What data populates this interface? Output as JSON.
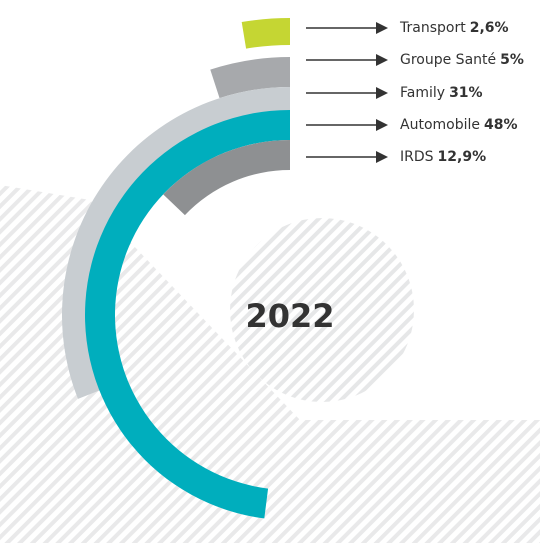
{
  "chart_data": {
    "type": "radial_bar",
    "center_label": "2022",
    "categories": [
      "Transport",
      "Groupe Santé",
      "Family",
      "Automobile",
      "IRDS"
    ],
    "values": [
      2.6,
      5,
      31,
      48,
      12.9
    ],
    "value_labels": [
      "2,6%",
      "5%",
      "31%",
      "48%",
      "12,9%"
    ],
    "colors": [
      "#c5d633",
      "#a7a9ac",
      "#c8cdd1",
      "#00aebd",
      "#8e9092"
    ]
  }
}
